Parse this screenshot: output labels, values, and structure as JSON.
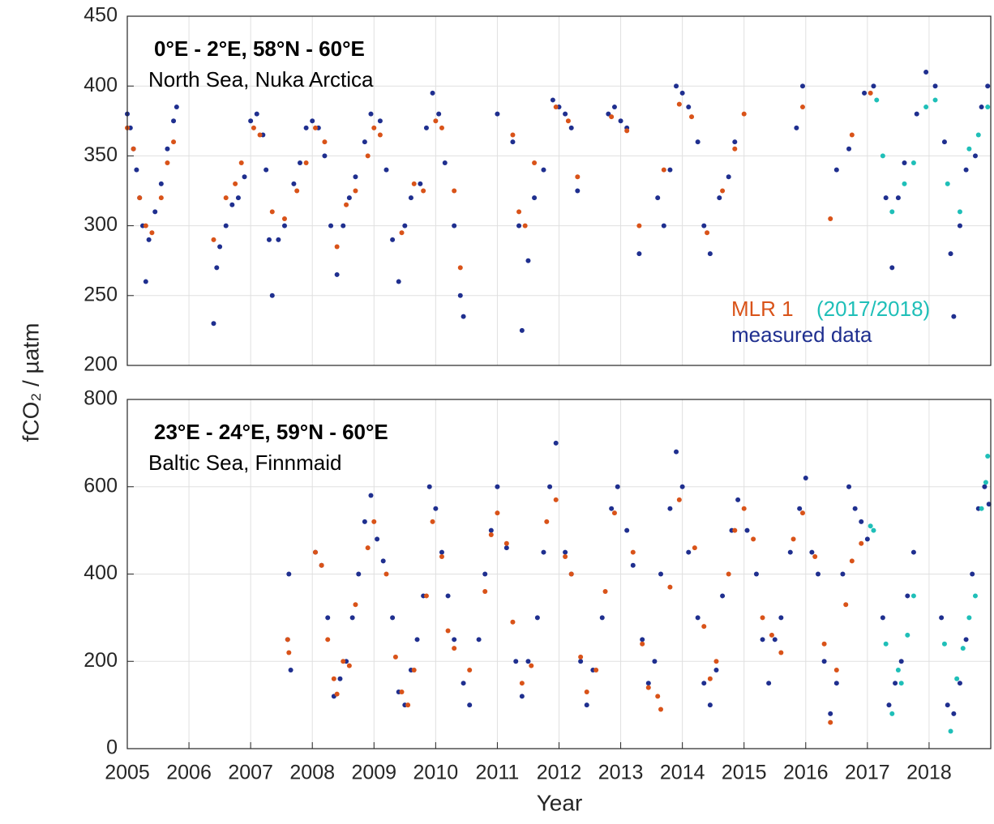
{
  "chart_data": [
    {
      "type": "scatter",
      "title": "0°E - 2°E, 58°N - 60°E",
      "subtitle": "North Sea, Nuka Arctica",
      "ylabel": "fCO₂ / µatm",
      "xlim": [
        2005,
        2019
      ],
      "ylim": [
        200,
        450
      ],
      "yticks": [
        200,
        250,
        300,
        350,
        400,
        450
      ],
      "grid": true,
      "legend": "lower right",
      "series": [
        {
          "name": "measured data",
          "color": "#1f2f8f",
          "x": [
            2005.0,
            2005.05,
            2005.1,
            2005.15,
            2005.2,
            2005.25,
            2005.3,
            2005.35,
            2005.45,
            2005.55,
            2005.65,
            2005.75,
            2005.8,
            2006.4,
            2006.45,
            2006.5,
            2006.6,
            2006.7,
            2006.8,
            2006.9,
            2007.0,
            2007.1,
            2007.2,
            2007.25,
            2007.3,
            2007.35,
            2007.45,
            2007.55,
            2007.7,
            2007.8,
            2007.9,
            2008.0,
            2008.1,
            2008.2,
            2008.3,
            2008.4,
            2008.5,
            2008.6,
            2008.7,
            2008.85,
            2008.95,
            2009.1,
            2009.2,
            2009.3,
            2009.4,
            2009.5,
            2009.6,
            2009.75,
            2009.85,
            2009.95,
            2010.05,
            2010.15,
            2010.3,
            2010.4,
            2010.45,
            2011.0,
            2011.25,
            2011.35,
            2011.4,
            2011.5,
            2011.6,
            2011.75,
            2011.9,
            2012.0,
            2012.1,
            2012.2,
            2012.3,
            2012.8,
            2012.9,
            2013.0,
            2013.1,
            2013.3,
            2013.6,
            2013.7,
            2013.8,
            2013.9,
            2014.0,
            2014.1,
            2014.25,
            2014.35,
            2014.45,
            2014.6,
            2014.75,
            2014.85,
            2015.85,
            2015.95,
            2016.5,
            2016.7,
            2016.95,
            2017.1,
            2017.3,
            2017.4,
            2017.5,
            2017.6,
            2017.8,
            2017.95,
            2018.1,
            2018.25,
            2018.35,
            2018.4,
            2018.5,
            2018.6,
            2018.75,
            2018.85,
            2018.95
          ],
          "values": [
            380,
            370,
            355,
            340,
            320,
            300,
            260,
            290,
            310,
            330,
            355,
            375,
            385,
            230,
            270,
            285,
            300,
            315,
            320,
            335,
            375,
            380,
            365,
            340,
            290,
            250,
            290,
            300,
            330,
            345,
            370,
            375,
            370,
            350,
            300,
            265,
            300,
            320,
            335,
            360,
            380,
            375,
            340,
            290,
            260,
            300,
            320,
            330,
            370,
            395,
            380,
            345,
            300,
            250,
            235,
            380,
            360,
            300,
            225,
            275,
            320,
            340,
            390,
            385,
            380,
            370,
            325,
            380,
            385,
            375,
            370,
            280,
            320,
            300,
            340,
            400,
            395,
            385,
            360,
            300,
            280,
            320,
            335,
            360,
            370,
            400,
            340,
            355,
            395,
            400,
            320,
            270,
            320,
            345,
            380,
            410,
            400,
            360,
            280,
            235,
            300,
            340,
            350,
            385,
            400
          ]
        },
        {
          "name": "MLR 1",
          "color": "#d95319",
          "x": [
            2005.0,
            2005.1,
            2005.2,
            2005.3,
            2005.4,
            2005.55,
            2005.65,
            2005.75,
            2006.4,
            2006.6,
            2006.75,
            2006.85,
            2007.05,
            2007.15,
            2007.35,
            2007.55,
            2007.75,
            2007.9,
            2008.05,
            2008.2,
            2008.4,
            2008.55,
            2008.7,
            2008.9,
            2009.0,
            2009.1,
            2009.45,
            2009.65,
            2009.8,
            2010.0,
            2010.1,
            2010.3,
            2010.4,
            2011.25,
            2011.35,
            2011.45,
            2011.6,
            2011.95,
            2012.15,
            2012.3,
            2012.85,
            2013.1,
            2013.3,
            2013.7,
            2013.95,
            2014.15,
            2014.4,
            2014.65,
            2014.85,
            2015.0,
            2015.95,
            2016.4,
            2016.75,
            2017.05
          ],
          "values": [
            370,
            355,
            320,
            300,
            295,
            320,
            345,
            360,
            290,
            320,
            330,
            345,
            370,
            365,
            310,
            305,
            325,
            345,
            370,
            360,
            285,
            315,
            325,
            350,
            370,
            365,
            295,
            330,
            325,
            375,
            370,
            325,
            270,
            365,
            310,
            300,
            345,
            385,
            375,
            335,
            378,
            368,
            300,
            340,
            387,
            378,
            295,
            325,
            355,
            380,
            385,
            305,
            365,
            395
          ]
        },
        {
          "name": "(2017/2018)",
          "color": "#1fbfb8",
          "x": [
            2017.15,
            2017.25,
            2017.4,
            2017.6,
            2017.75,
            2017.95,
            2018.1,
            2018.3,
            2018.5,
            2018.65,
            2018.8,
            2018.95
          ],
          "values": [
            390,
            350,
            310,
            330,
            345,
            385,
            390,
            330,
            310,
            355,
            365,
            385
          ]
        }
      ]
    },
    {
      "type": "scatter",
      "title": "23°E - 24°E, 59°N - 60°E",
      "subtitle": "Baltic Sea, Finnmaid",
      "xlabel": "Year",
      "xlim": [
        2005,
        2019
      ],
      "ylim": [
        0,
        800
      ],
      "yticks": [
        0,
        200,
        400,
        600,
        800
      ],
      "xticks": [
        2005,
        2006,
        2007,
        2008,
        2009,
        2010,
        2011,
        2012,
        2013,
        2014,
        2015,
        2016,
        2017,
        2018
      ],
      "grid": true,
      "series": [
        {
          "color": "#1f2f8f",
          "x": [
            2007.6,
            2007.62,
            2007.65,
            2008.05,
            2008.15,
            2008.25,
            2008.35,
            2008.45,
            2008.55,
            2008.65,
            2008.75,
            2008.85,
            2008.95,
            2009.05,
            2009.15,
            2009.3,
            2009.4,
            2009.5,
            2009.6,
            2009.7,
            2009.8,
            2009.9,
            2010.0,
            2010.1,
            2010.2,
            2010.3,
            2010.45,
            2010.55,
            2010.7,
            2010.8,
            2010.9,
            2011.0,
            2011.15,
            2011.3,
            2011.4,
            2011.5,
            2011.65,
            2011.75,
            2011.85,
            2011.95,
            2012.1,
            2012.2,
            2012.35,
            2012.45,
            2012.55,
            2012.7,
            2012.85,
            2012.95,
            2013.1,
            2013.2,
            2013.35,
            2013.45,
            2013.55,
            2013.65,
            2013.8,
            2013.9,
            2014.0,
            2014.1,
            2014.25,
            2014.35,
            2014.45,
            2014.55,
            2014.65,
            2014.8,
            2014.9,
            2015.05,
            2015.2,
            2015.3,
            2015.4,
            2015.5,
            2015.6,
            2015.75,
            2015.9,
            2016.0,
            2016.1,
            2016.2,
            2016.3,
            2016.4,
            2016.5,
            2016.6,
            2016.7,
            2016.8,
            2016.9,
            2017.0,
            2017.25,
            2017.35,
            2017.45,
            2017.55,
            2017.65,
            2017.75,
            2018.2,
            2018.3,
            2018.4,
            2018.5,
            2018.6,
            2018.7,
            2018.8,
            2018.9,
            2018.97
          ],
          "values": [
            250,
            400,
            180,
            450,
            420,
            300,
            120,
            160,
            200,
            300,
            400,
            520,
            580,
            480,
            430,
            300,
            130,
            100,
            180,
            250,
            350,
            600,
            550,
            450,
            350,
            250,
            150,
            100,
            250,
            400,
            500,
            600,
            460,
            200,
            120,
            200,
            300,
            450,
            600,
            700,
            450,
            400,
            200,
            100,
            180,
            300,
            550,
            600,
            500,
            420,
            250,
            150,
            200,
            400,
            550,
            680,
            600,
            450,
            300,
            150,
            100,
            180,
            350,
            500,
            570,
            500,
            400,
            250,
            150,
            250,
            300,
            450,
            550,
            620,
            450,
            400,
            200,
            80,
            150,
            400,
            600,
            550,
            520,
            480,
            300,
            100,
            150,
            200,
            350,
            450,
            300,
            100,
            80,
            150,
            250,
            400,
            550,
            600,
            560
          ]
        },
        {
          "color": "#d95319",
          "x": [
            2007.6,
            2007.62,
            2008.05,
            2008.15,
            2008.25,
            2008.35,
            2008.4,
            2008.5,
            2008.6,
            2008.7,
            2008.9,
            2009.0,
            2009.2,
            2009.35,
            2009.45,
            2009.55,
            2009.65,
            2009.85,
            2009.95,
            2010.1,
            2010.2,
            2010.3,
            2010.55,
            2010.8,
            2010.9,
            2011.0,
            2011.15,
            2011.25,
            2011.4,
            2011.55,
            2011.8,
            2011.95,
            2012.1,
            2012.2,
            2012.35,
            2012.45,
            2012.6,
            2012.75,
            2012.9,
            2013.2,
            2013.35,
            2013.45,
            2013.6,
            2013.65,
            2013.8,
            2013.95,
            2014.2,
            2014.35,
            2014.45,
            2014.55,
            2014.75,
            2014.85,
            2015.0,
            2015.15,
            2015.3,
            2015.45,
            2015.6,
            2015.8,
            2015.95,
            2016.15,
            2016.3,
            2016.4,
            2016.5,
            2016.65,
            2016.75,
            2016.9
          ],
          "values": [
            250,
            220,
            450,
            420,
            250,
            160,
            125,
            200,
            190,
            330,
            460,
            520,
            400,
            210,
            130,
            100,
            180,
            350,
            520,
            440,
            270,
            230,
            180,
            360,
            490,
            540,
            470,
            290,
            150,
            190,
            520,
            570,
            440,
            400,
            210,
            130,
            180,
            360,
            540,
            450,
            240,
            140,
            120,
            90,
            370,
            570,
            460,
            280,
            160,
            200,
            400,
            500,
            550,
            480,
            300,
            260,
            220,
            480,
            540,
            440,
            240,
            60,
            180,
            330,
            430,
            470
          ]
        },
        {
          "color": "#1fbfb8",
          "x": [
            2017.05,
            2017.1,
            2017.3,
            2017.4,
            2017.5,
            2017.55,
            2017.65,
            2017.75,
            2018.25,
            2018.35,
            2018.45,
            2018.55,
            2018.65,
            2018.75,
            2018.85,
            2018.92,
            2018.95
          ],
          "values": [
            510,
            500,
            240,
            80,
            180,
            150,
            260,
            350,
            240,
            40,
            160,
            230,
            300,
            350,
            550,
            610,
            670
          ]
        }
      ]
    }
  ]
}
